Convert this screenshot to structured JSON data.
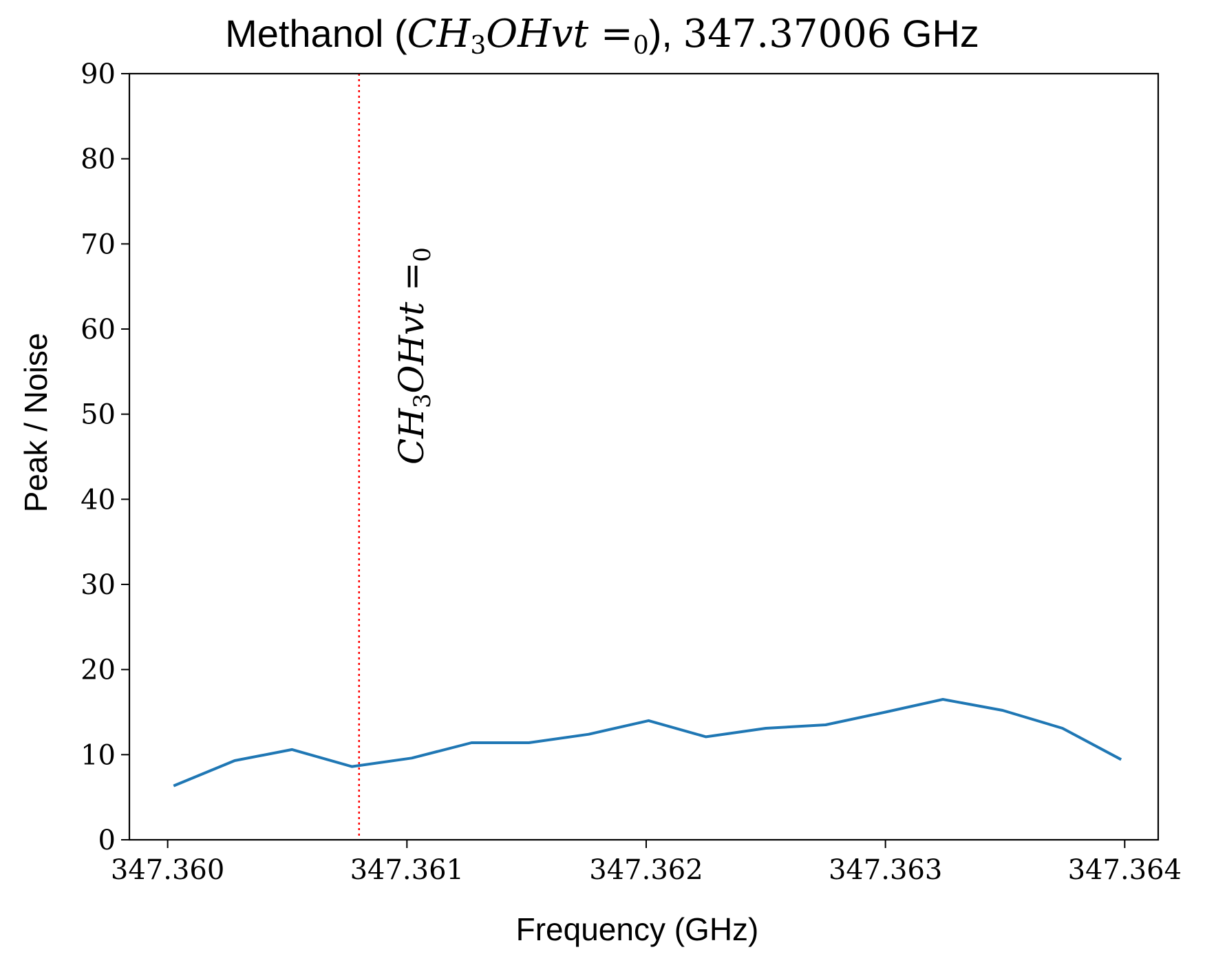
{
  "chart_data": {
    "type": "line",
    "title": {
      "prefix": "Methanol (",
      "species": "CH",
      "sub1": "3",
      "species2": "OHvt =",
      "sub2": "0",
      "suffix": "), ",
      "freq": "347.37006",
      "unit": " GHz"
    },
    "xlabel": "Frequency (GHz)",
    "ylabel": "Peak / Noise",
    "xlim": [
      347.35984,
      347.36414
    ],
    "ylim": [
      0,
      90
    ],
    "xticks": [
      347.36,
      347.361,
      347.362,
      347.363,
      347.364
    ],
    "xtick_labels": [
      "347.360",
      "347.361",
      "347.362",
      "347.363",
      "347.364"
    ],
    "yticks": [
      0,
      10,
      20,
      30,
      40,
      50,
      60,
      70,
      80,
      90
    ],
    "ytick_labels": [
      "0",
      "10",
      "20",
      "30",
      "40",
      "50",
      "60",
      "70",
      "80",
      "90"
    ],
    "grid": false,
    "series": [
      {
        "color": "#1f77b4",
        "x": [
          347.36003,
          347.36028,
          347.36052,
          347.36077,
          347.36102,
          347.36127,
          347.36151,
          347.36176,
          347.36201,
          347.36225,
          347.3625,
          347.36275,
          347.363,
          347.36324,
          347.36349,
          347.36374,
          347.36398
        ],
        "y": [
          6.4,
          9.3,
          10.6,
          8.6,
          9.6,
          11.4,
          11.4,
          12.4,
          14.0,
          12.1,
          13.1,
          13.5,
          15.0,
          16.5,
          15.2,
          13.1,
          9.5
        ]
      }
    ],
    "annotation": {
      "x": 347.3608,
      "color": "#ff0000",
      "label_main": "CH",
      "label_sub1": "3",
      "label_main2": "OHvt =",
      "label_sub2": "0"
    }
  }
}
